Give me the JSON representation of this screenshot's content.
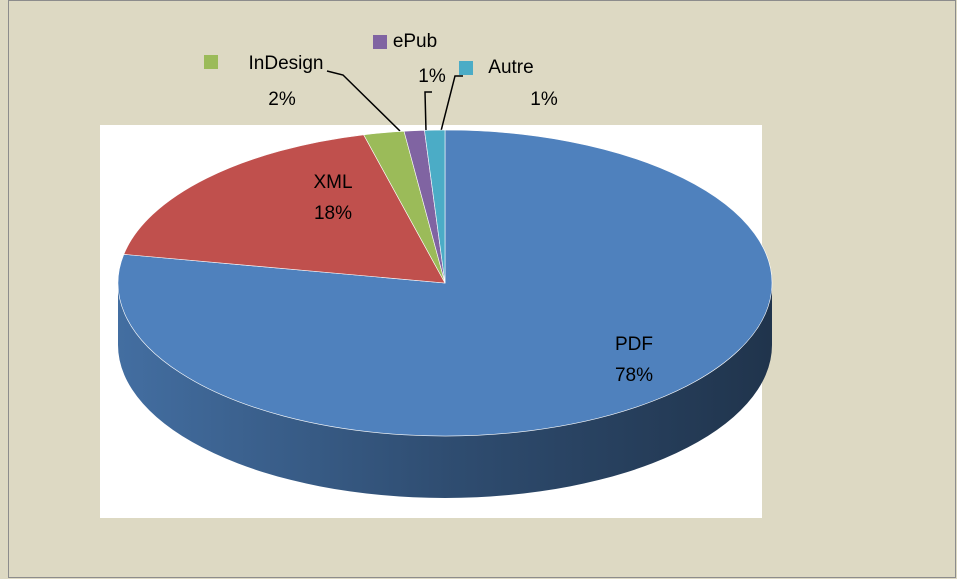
{
  "chart_data": {
    "type": "pie",
    "three_d": true,
    "categories": [
      "PDF",
      "XML",
      "InDesign",
      "ePub",
      "Autre"
    ],
    "values": [
      78,
      18,
      2,
      1,
      1
    ],
    "value_labels": [
      "78%",
      "18%",
      "2%",
      "1%",
      "1%"
    ],
    "colors": [
      "#4f81bd",
      "#c0504d",
      "#9bbb59",
      "#8064a2",
      "#4bacc6"
    ]
  }
}
